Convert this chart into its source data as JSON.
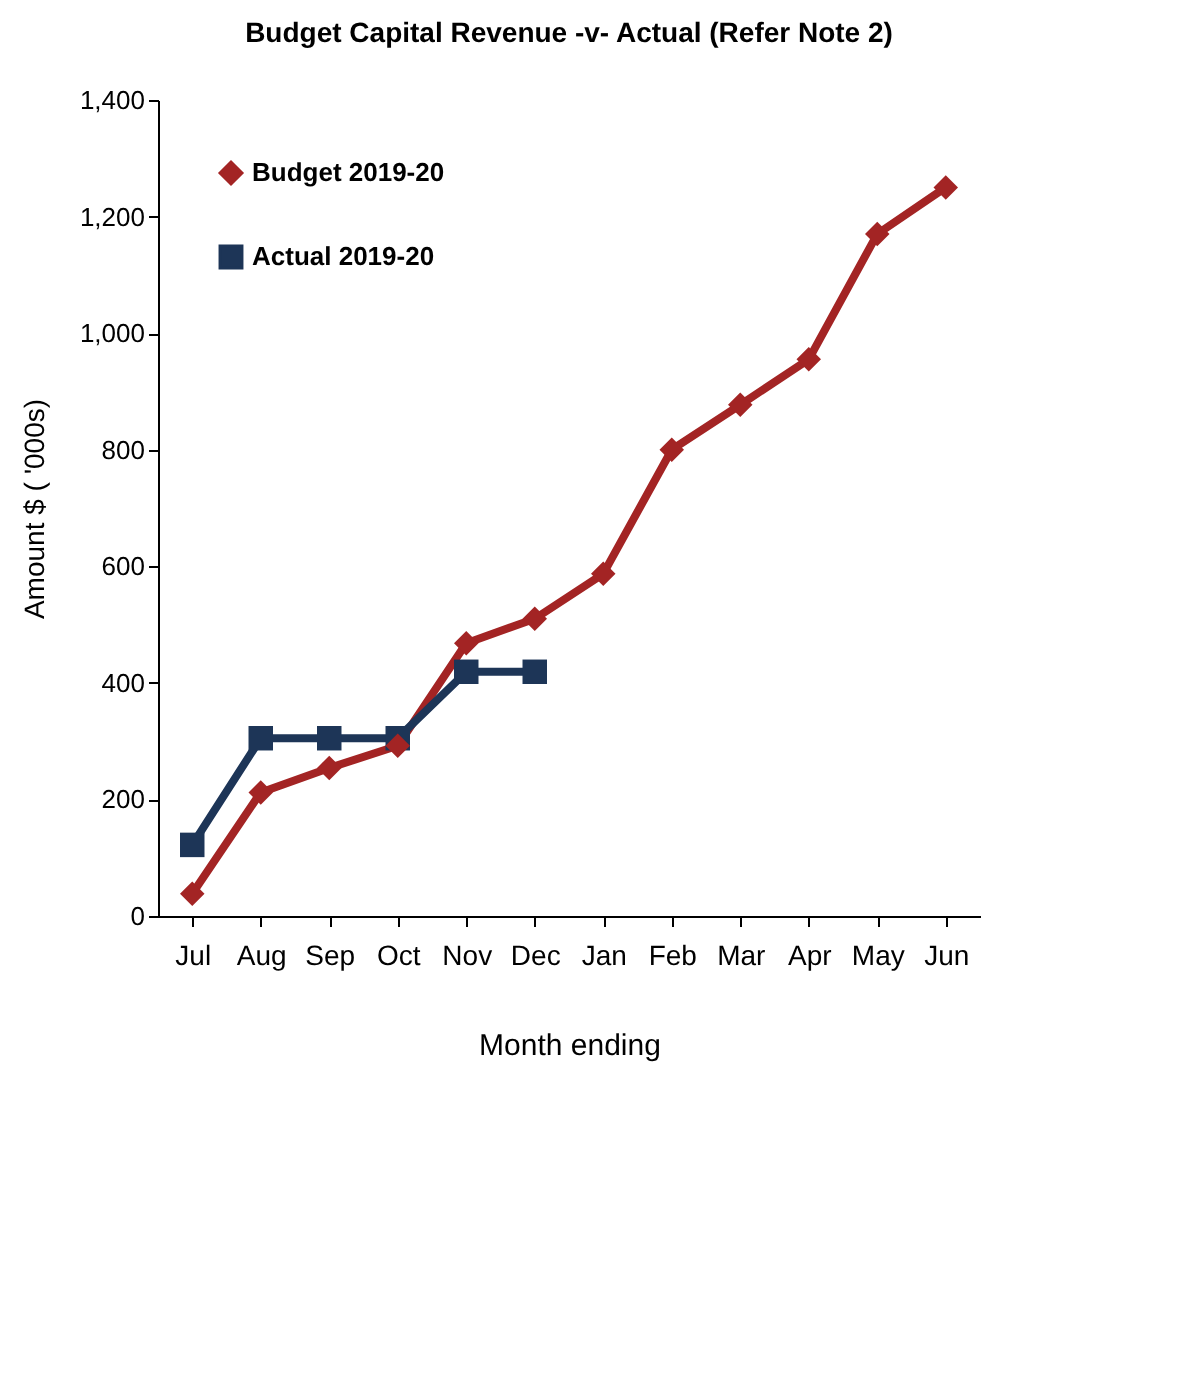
{
  "chart_data": {
    "type": "line",
    "title": "Budget Capital Revenue -v- Actual (Refer Note 2)",
    "xlabel": "Month ending",
    "ylabel": "Amount $ ( '000s)",
    "categories": [
      "Jul",
      "Aug",
      "Sep",
      "Oct",
      "Nov",
      "Dec",
      "Jan",
      "Feb",
      "Mar",
      "Apr",
      "May",
      "Jun"
    ],
    "series": [
      {
        "name": "Budget 2019-20",
        "color": "#a32424",
        "marker": "diamond",
        "values": [
          38,
          212,
          254,
          292,
          468,
          510,
          587,
          800,
          877,
          955,
          1170,
          1250
        ]
      },
      {
        "name": "Actual 2019-20",
        "color": "#1d3557",
        "marker": "square",
        "values": [
          122,
          305,
          305,
          305,
          419,
          419,
          null,
          null,
          null,
          null,
          null,
          null
        ]
      }
    ],
    "ylim": [
      0,
      1400
    ],
    "yticks": [
      0,
      200,
      400,
      600,
      800,
      {
        "value": 1000,
        "label": "1,000"
      },
      {
        "value": 1200,
        "label": "1,200"
      },
      {
        "value": 1400,
        "label": "1,400"
      }
    ],
    "grid": false,
    "legend": "top left",
    "line_style": "solid"
  }
}
